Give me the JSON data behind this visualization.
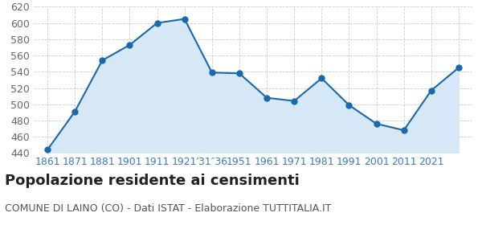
{
  "x_positions": [
    0,
    1,
    2,
    3,
    4,
    5,
    6,
    7,
    8,
    9,
    10,
    11,
    12,
    13,
    14,
    15
  ],
  "x_labels": [
    "1861",
    "1871",
    "1881",
    "1901",
    "1911",
    "1921",
    "’31″36",
    "1951",
    "1961",
    "1971",
    "1981",
    "1991",
    "2001",
    "2011",
    "2021"
  ],
  "values": [
    444,
    491,
    554,
    573,
    600,
    605,
    539,
    538,
    508,
    504,
    532,
    499,
    476,
    468,
    517,
    545
  ],
  "ylim": [
    440,
    620
  ],
  "yticks": [
    440,
    460,
    480,
    500,
    520,
    540,
    560,
    580,
    600,
    620
  ],
  "line_color": "#1a6aab",
  "fill_color": "#d6e8f5",
  "marker_size": 5,
  "grid_color": "#cccccc",
  "title": "Popolazione residente ai censimenti",
  "subtitle": "COMUNE DI LAINO (CO) - Dati ISTAT - Elaborazione TUTTITALIA.IT",
  "title_fontsize": 13,
  "subtitle_fontsize": 9,
  "tick_label_color": "#3a7abf",
  "ytick_label_color": "#666666",
  "tick_label_fontsize": 9,
  "background_color": "#ffffff"
}
